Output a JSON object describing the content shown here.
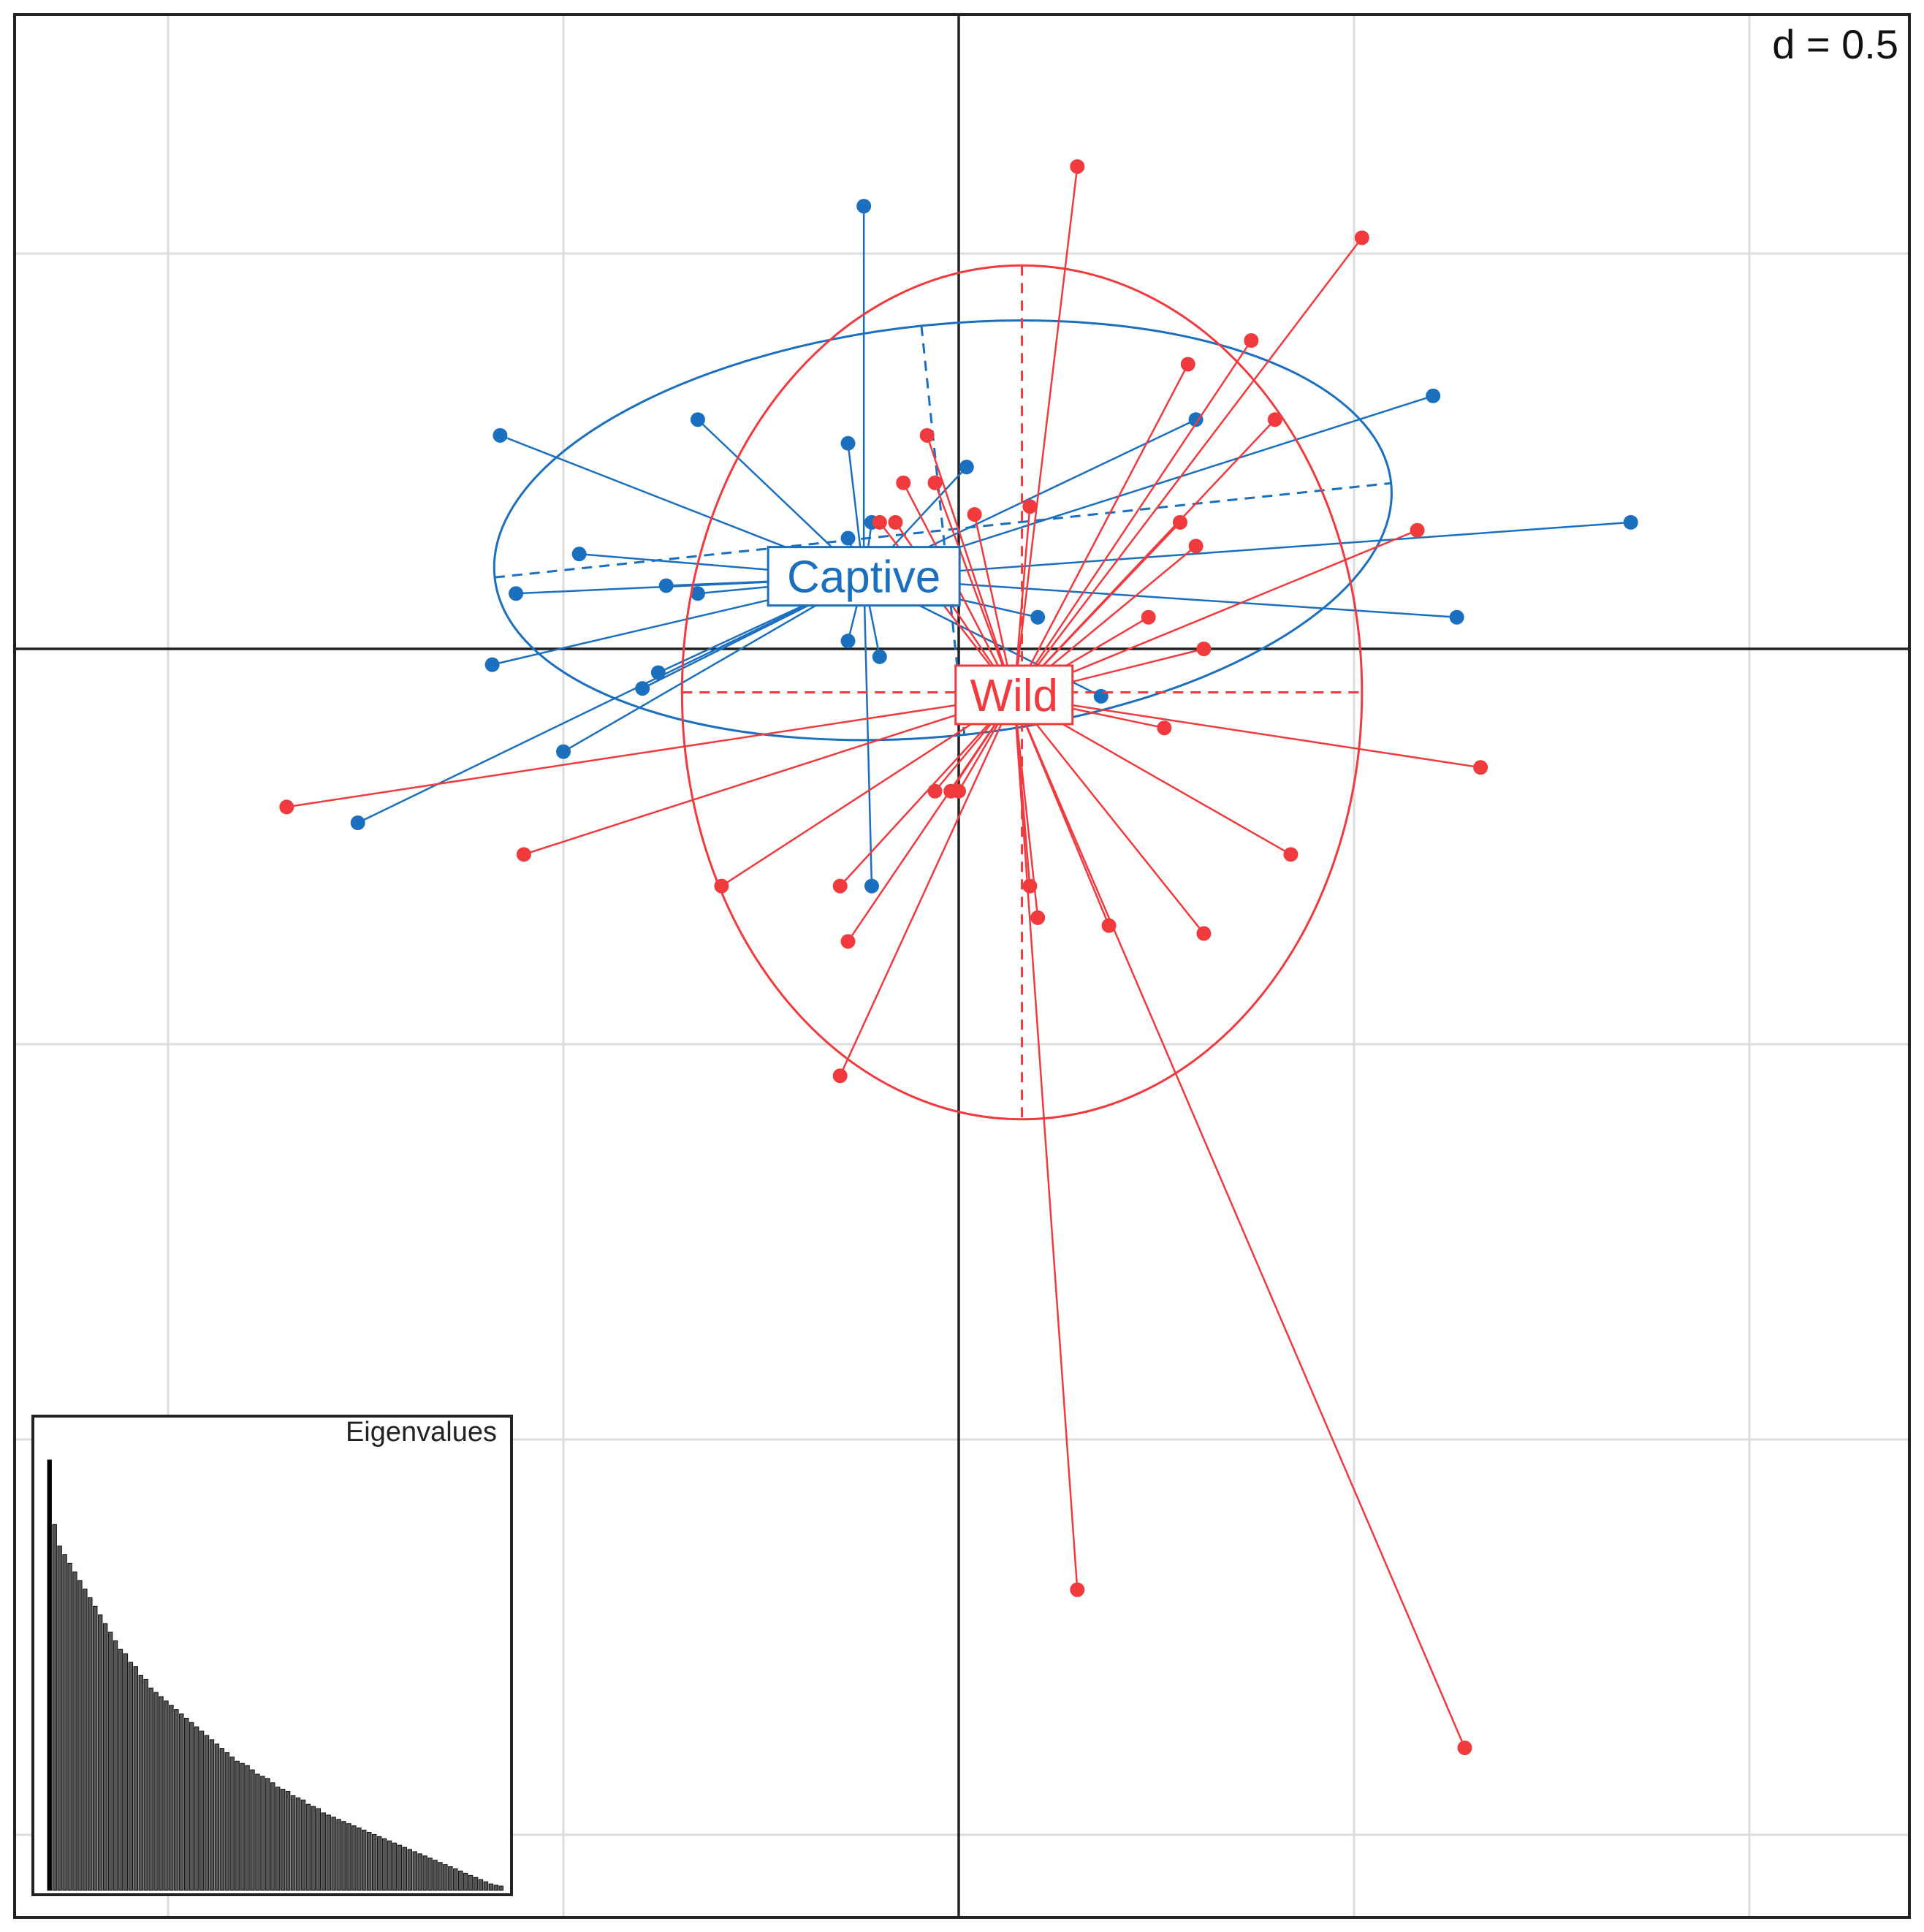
{
  "chart_data": {
    "type": "scatter",
    "scale_label": "d = 0.5",
    "grid_step": 0.5,
    "xlim": [
      -1.2,
      1.2
    ],
    "ylim": [
      -1.6,
      0.8
    ],
    "origin": [
      0,
      0
    ],
    "colors": {
      "Captive": "#1b6fbf",
      "Wild": "#f03a3e"
    },
    "groups": [
      {
        "name": "Captive",
        "label_position": [
          -0.12,
          0.09
        ],
        "centroid": [
          -0.12,
          0.09
        ],
        "ellipse": {
          "cx": -0.02,
          "cy": 0.15,
          "rx": 0.57,
          "ry": 0.26,
          "angle": 6
        },
        "points": [
          [
            -0.12,
            0.56
          ],
          [
            -0.33,
            0.29
          ],
          [
            -0.58,
            0.27
          ],
          [
            -0.48,
            0.12
          ],
          [
            -0.56,
            0.07
          ],
          [
            -0.37,
            0.08
          ],
          [
            -0.33,
            0.07
          ],
          [
            -0.59,
            -0.02
          ],
          [
            -0.38,
            -0.03
          ],
          [
            -0.4,
            -0.05
          ],
          [
            -0.5,
            -0.13
          ],
          [
            -0.76,
            -0.22
          ],
          [
            -0.14,
            0.26
          ],
          [
            0.01,
            0.23
          ],
          [
            0.3,
            0.29
          ],
          [
            0.6,
            0.32
          ],
          [
            0.85,
            0.16
          ],
          [
            0.63,
            0.04
          ],
          [
            -0.11,
            0.16
          ],
          [
            -0.14,
            0.14
          ],
          [
            -0.14,
            0.01
          ],
          [
            -0.11,
            -0.3
          ],
          [
            0.1,
            0.04
          ],
          [
            0.18,
            -0.06
          ],
          [
            -0.1,
            -0.01
          ]
        ]
      },
      {
        "name": "Wild",
        "label_position": [
          0.07,
          -0.06
        ],
        "centroid": [
          0.07,
          -0.06
        ],
        "ellipse": {
          "cx": 0.08,
          "cy": -0.055,
          "rx": 0.43,
          "ry": 0.54,
          "angle": 0
        },
        "points": [
          [
            0.15,
            0.61
          ],
          [
            0.51,
            0.52
          ],
          [
            0.37,
            0.39
          ],
          [
            0.29,
            0.36
          ],
          [
            0.4,
            0.29
          ],
          [
            0.58,
            0.15
          ],
          [
            0.28,
            0.16
          ],
          [
            0.3,
            0.13
          ],
          [
            0.24,
            0.04
          ],
          [
            0.31,
            0.0
          ],
          [
            0.26,
            -0.1
          ],
          [
            0.66,
            -0.15
          ],
          [
            0.42,
            -0.26
          ],
          [
            0.31,
            -0.36
          ],
          [
            0.19,
            -0.35
          ],
          [
            0.09,
            -0.3
          ],
          [
            0.1,
            -0.34
          ],
          [
            0.15,
            -1.19
          ],
          [
            0.64,
            -1.39
          ],
          [
            -0.15,
            -0.54
          ],
          [
            -0.14,
            -0.37
          ],
          [
            -0.15,
            -0.3
          ],
          [
            -0.3,
            -0.3
          ],
          [
            -0.55,
            -0.26
          ],
          [
            -0.85,
            -0.2
          ],
          [
            -0.03,
            -0.18
          ],
          [
            -0.01,
            -0.18
          ],
          [
            0.0,
            -0.18
          ],
          [
            -0.1,
            0.16
          ],
          [
            -0.07,
            0.21
          ],
          [
            -0.04,
            0.27
          ],
          [
            -0.03,
            0.21
          ],
          [
            0.02,
            0.17
          ],
          [
            0.09,
            0.18
          ],
          [
            -0.08,
            0.16
          ]
        ]
      }
    ],
    "inset": {
      "title": "Eigenvalues",
      "values": [
        1.0,
        0.85,
        0.8,
        0.78,
        0.76,
        0.74,
        0.72,
        0.7,
        0.68,
        0.66,
        0.64,
        0.62,
        0.6,
        0.58,
        0.56,
        0.55,
        0.53,
        0.52,
        0.5,
        0.49,
        0.47,
        0.46,
        0.45,
        0.44,
        0.43,
        0.42,
        0.41,
        0.4,
        0.39,
        0.38,
        0.37,
        0.36,
        0.35,
        0.34,
        0.33,
        0.32,
        0.31,
        0.3,
        0.295,
        0.29,
        0.28,
        0.27,
        0.265,
        0.26,
        0.25,
        0.24,
        0.235,
        0.23,
        0.22,
        0.215,
        0.21,
        0.2,
        0.195,
        0.19,
        0.18,
        0.175,
        0.17,
        0.165,
        0.16,
        0.155,
        0.15,
        0.145,
        0.14,
        0.135,
        0.13,
        0.125,
        0.12,
        0.115,
        0.11,
        0.105,
        0.1,
        0.095,
        0.09,
        0.085,
        0.08,
        0.075,
        0.07,
        0.065,
        0.06,
        0.055,
        0.05,
        0.045,
        0.04,
        0.035,
        0.03,
        0.025,
        0.02,
        0.015,
        0.012,
        0.01
      ]
    }
  }
}
